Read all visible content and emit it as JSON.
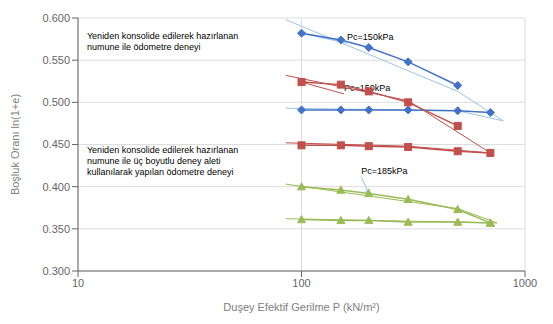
{
  "chart_data": {
    "type": "line",
    "x_label": "Duşey Efektif Gerilme P (kN/m²)",
    "y_label": "Boşluk Oranı ln(1+e)",
    "log": "x",
    "grid": true,
    "xlim": [
      10,
      1000
    ],
    "xticks": [
      10,
      100,
      1000
    ],
    "ylim": [
      0.3,
      0.6
    ],
    "yticks": [
      {
        "value": 0.3,
        "label": "0.300"
      },
      {
        "value": 0.35,
        "label": "0.350"
      },
      {
        "value": 0.4,
        "label": "0.400"
      },
      {
        "value": 0.45,
        "label": "0.450"
      },
      {
        "value": 0.5,
        "label": "0.500"
      },
      {
        "value": 0.55,
        "label": "0.550"
      },
      {
        "value": 0.6,
        "label": "0.600"
      }
    ],
    "series": [
      {
        "x": [
          85,
          500
        ],
        "values": [
          0.598,
          0.513
        ],
        "color": "#9DC3E6",
        "marker": "none"
      },
      {
        "x": [
          500,
          800
        ],
        "values": [
          0.513,
          0.478
        ],
        "color": "#9DC3E6",
        "marker": "none"
      },
      {
        "x": [
          85,
          500
        ],
        "values": [
          0.493,
          0.49
        ],
        "color": "#9DC3E6",
        "marker": "none"
      },
      {
        "x": [
          500,
          800
        ],
        "values": [
          0.49,
          0.478
        ],
        "color": "#9DC3E6",
        "marker": "none"
      },
      {
        "x": [
          85,
          300
        ],
        "values": [
          0.532,
          0.502
        ],
        "color": "#C0504D",
        "marker": "none"
      },
      {
        "x": [
          300,
          700
        ],
        "values": [
          0.502,
          0.44
        ],
        "color": "#C0504D",
        "marker": "none"
      },
      {
        "x": [
          85,
          300
        ],
        "values": [
          0.452,
          0.448
        ],
        "color": "#C0504D",
        "marker": "none"
      },
      {
        "x": [
          300,
          700
        ],
        "values": [
          0.448,
          0.44
        ],
        "color": "#C0504D",
        "marker": "none"
      },
      {
        "x": [
          85,
          500
        ],
        "values": [
          0.403,
          0.374
        ],
        "color": "#9BBB59",
        "marker": "none"
      },
      {
        "x": [
          500,
          750
        ],
        "values": [
          0.374,
          0.357
        ],
        "color": "#9BBB59",
        "marker": "none"
      },
      {
        "x": [
          85,
          500
        ],
        "values": [
          0.362,
          0.358
        ],
        "color": "#9BBB59",
        "marker": "none"
      },
      {
        "x": [
          500,
          750
        ],
        "values": [
          0.358,
          0.357
        ],
        "color": "#9BBB59",
        "marker": "none"
      },
      {
        "x": [
          100,
          150,
          200,
          300,
          500
        ],
        "values": [
          0.582,
          0.574,
          0.565,
          0.548,
          0.52
        ],
        "color": "#4472C4",
        "marker": "diamond"
      },
      {
        "x": [
          100,
          150,
          200,
          300,
          500,
          700
        ],
        "values": [
          0.491,
          0.491,
          0.491,
          0.491,
          0.49,
          0.488
        ],
        "color": "#4472C4",
        "marker": "diamond"
      },
      {
        "x": [
          100,
          150,
          200,
          300,
          500
        ],
        "values": [
          0.524,
          0.521,
          0.513,
          0.5,
          0.472
        ],
        "color": "#C0504D",
        "marker": "square"
      },
      {
        "x": [
          100,
          150,
          200,
          300,
          500,
          700
        ],
        "values": [
          0.449,
          0.449,
          0.448,
          0.447,
          0.442,
          0.44
        ],
        "color": "#C0504D",
        "marker": "square"
      },
      {
        "x": [
          100,
          150,
          200,
          300,
          500,
          700
        ],
        "values": [
          0.4,
          0.396,
          0.392,
          0.385,
          0.373,
          0.357
        ],
        "color": "#9BBB59",
        "marker": "triangle"
      },
      {
        "x": [
          100,
          150,
          200,
          300,
          500,
          700
        ],
        "values": [
          0.361,
          0.36,
          0.36,
          0.358,
          0.358,
          0.357
        ],
        "color": "#9BBB59",
        "marker": "triangle"
      }
    ],
    "annotations": [
      {
        "text": "Pc=150kPa",
        "x": 100,
        "y": 0.582,
        "text_x": 160,
        "text_y": 0.57,
        "color": "#9DC3E6"
      },
      {
        "text": "Pc=150kPa",
        "x": 100,
        "y": 0.524,
        "text_x": 155,
        "text_y": 0.51,
        "color": "#C0504D"
      },
      {
        "text": "Pc=185kPa",
        "x": 200,
        "y": 0.392,
        "text_x": 185,
        "text_y": 0.412,
        "color": "#9DC3E6"
      },
      {
        "text": "Yeniden konsolide edilerek hazırlanan\nnumune ile ödometre deneyi"
      },
      {
        "text": "Yeniden konsolide edilerek hazırlanan\nnumune ile üç boyutlu deney aleti\nkullanılarak yapılan ödometre deneyi"
      }
    ]
  }
}
